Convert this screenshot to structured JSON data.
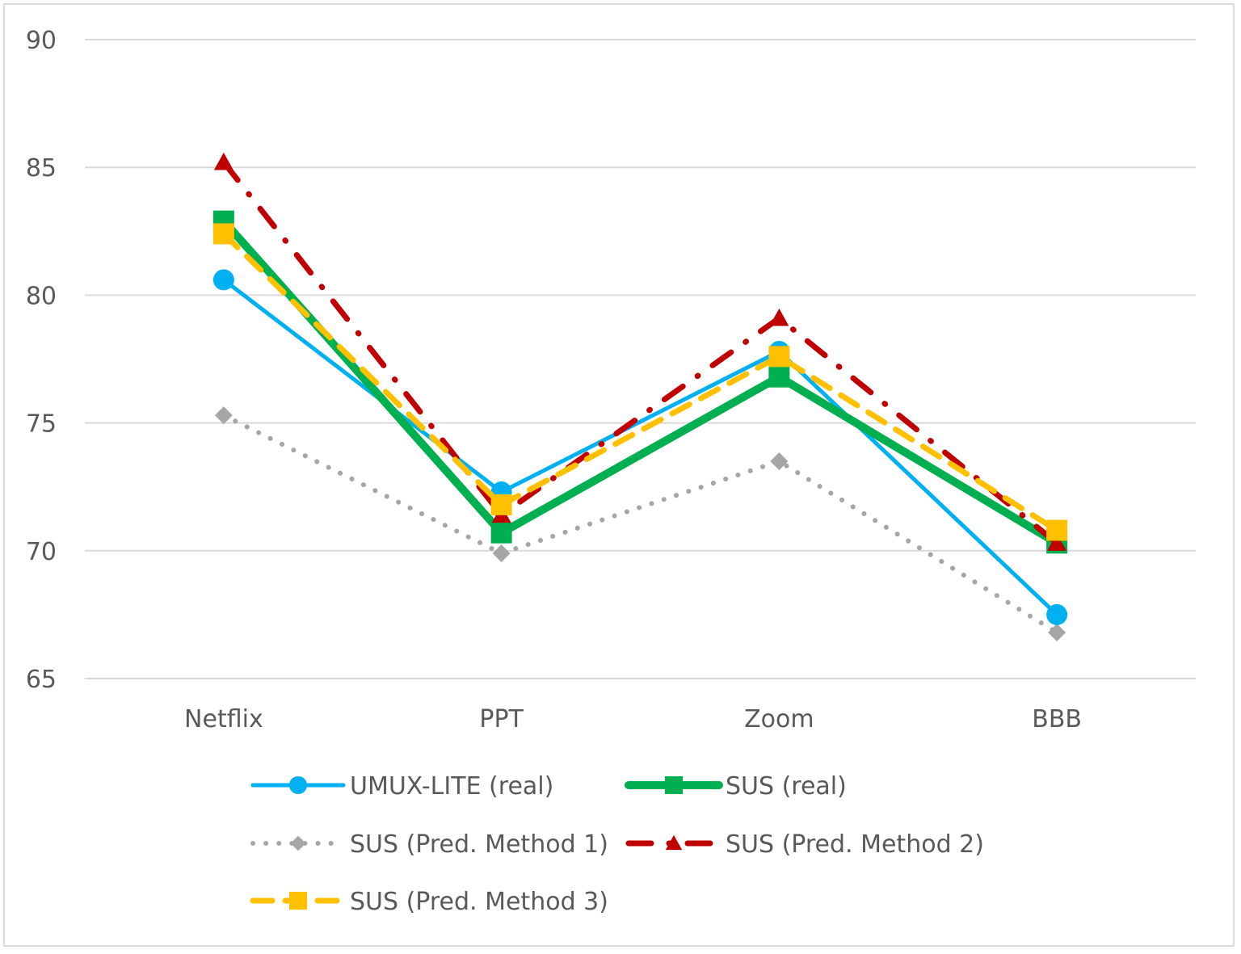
{
  "chart_data": {
    "type": "line",
    "title": "",
    "xlabel": "",
    "ylabel": "",
    "categories": [
      "Netflix",
      "PPT",
      "Zoom",
      "BBB"
    ],
    "ylim": [
      65,
      90
    ],
    "yticks": [
      65,
      70,
      75,
      80,
      85,
      90
    ],
    "grid": true,
    "legend_position": "bottom",
    "series": [
      {
        "name": "UMUX-LITE (real)",
        "values": [
          80.6,
          72.3,
          77.8,
          67.5
        ],
        "color": "#00b0f0",
        "line": "solid",
        "marker": "circle"
      },
      {
        "name": "SUS (real)",
        "values": [
          82.9,
          70.7,
          76.8,
          70.3
        ],
        "color": "#00b050",
        "line": "solid-thick",
        "marker": "square"
      },
      {
        "name": "SUS (Pred. Method 1)",
        "values": [
          75.3,
          69.9,
          73.5,
          66.8
        ],
        "color": "#a6a6a6",
        "line": "dotted",
        "marker": "diamond"
      },
      {
        "name": "SUS (Pred. Method 2)",
        "values": [
          85.2,
          71.4,
          79.1,
          70.3
        ],
        "color": "#c00000",
        "line": "dash-dot",
        "marker": "triangle"
      },
      {
        "name": "SUS (Pred. Method 3)",
        "values": [
          82.4,
          71.8,
          77.6,
          70.8
        ],
        "color": "#ffc000",
        "line": "dashed",
        "marker": "square"
      }
    ]
  }
}
